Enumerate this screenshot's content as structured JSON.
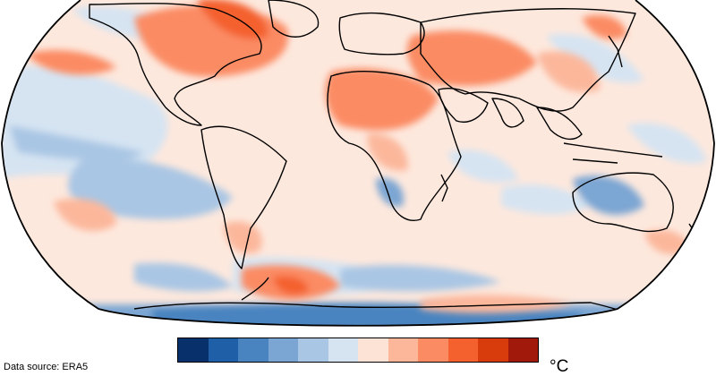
{
  "map": {
    "projection": "Robinson",
    "variable": "temperature anomaly",
    "land_outline_color": "#000000",
    "ocean_background": "#dbe7f3"
  },
  "colorbar": {
    "unit": "°C",
    "colors": [
      "#08306b",
      "#1f5fa8",
      "#4a84c0",
      "#7ba6d3",
      "#a9c6e4",
      "#d6e4f2",
      "#fde3d6",
      "#fcb79b",
      "#fb8b63",
      "#f4612f",
      "#d93c0c",
      "#a1190b"
    ]
  },
  "footer": {
    "source": "Data source: ERA5"
  }
}
